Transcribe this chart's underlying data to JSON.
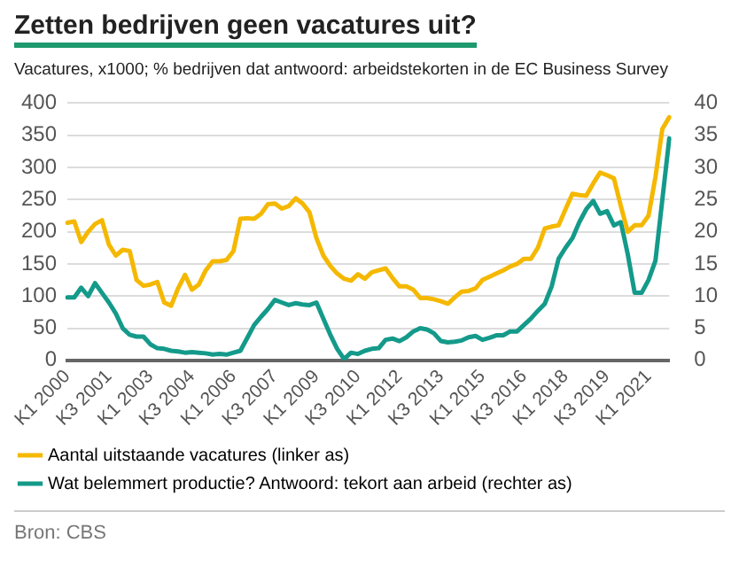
{
  "chart_data": {
    "type": "line",
    "title": "Zetten bedrijven geen vacatures uit?",
    "subtitle": "Vacatures, x1000; % bedrijven dat antwoord: arbeidstekorten in de EC Business Survey",
    "categories": [
      "K1 2000",
      null,
      null,
      null,
      null,
      null,
      "K3 2001",
      null,
      null,
      null,
      null,
      null,
      "K1 2003",
      null,
      null,
      null,
      null,
      null,
      "K3 2004",
      null,
      null,
      null,
      null,
      null,
      "K1 2006",
      null,
      null,
      null,
      null,
      null,
      "K3 2007",
      null,
      null,
      null,
      null,
      null,
      "K1 2009",
      null,
      null,
      null,
      null,
      null,
      "K3 2010",
      null,
      null,
      null,
      null,
      null,
      "K1 2012",
      null,
      null,
      null,
      null,
      null,
      "K3 2013",
      null,
      null,
      null,
      null,
      null,
      "K1 2015",
      null,
      null,
      null,
      null,
      null,
      "K3 2016",
      null,
      null,
      null,
      null,
      null,
      "K1 2018",
      null,
      null,
      null,
      null,
      null,
      "K3 2019",
      null,
      null,
      null,
      null,
      null,
      "K1 2021",
      null,
      null,
      null
    ],
    "series": [
      {
        "name": "Aantal uitstaande vacatures (linker as)",
        "color": "#f5b800",
        "axis": "y",
        "values": [
          214,
          216,
          184,
          200,
          212,
          218,
          180,
          163,
          172,
          170,
          125,
          116,
          118,
          122,
          90,
          85,
          112,
          133,
          110,
          118,
          140,
          154,
          154,
          156,
          170,
          220,
          221,
          220,
          228,
          243,
          244,
          236,
          240,
          252,
          244,
          230,
          190,
          163,
          147,
          135,
          127,
          124,
          134,
          127,
          137,
          140,
          143,
          128,
          115,
          115,
          110,
          97,
          97,
          95,
          92,
          88,
          98,
          107,
          108,
          112,
          125,
          130,
          135,
          140,
          146,
          150,
          158,
          158,
          175,
          205,
          208,
          210,
          235,
          259,
          257,
          256,
          275,
          292,
          288,
          283,
          240,
          200,
          210,
          210,
          225,
          285,
          360,
          378
        ]
      },
      {
        "name": "Wat belemmert productie? Antwoord: tekort aan arbeid (rechter as)",
        "color": "#149a8a",
        "axis": "y2",
        "values": [
          9.8,
          9.8,
          11.3,
          10,
          12,
          10.5,
          9,
          7.3,
          5,
          4,
          3.7,
          3.7,
          2.5,
          1.9,
          1.8,
          1.5,
          1.4,
          1.2,
          1.3,
          1.2,
          1.1,
          0.9,
          1,
          0.9,
          1.2,
          1.5,
          3.5,
          5.5,
          6.8,
          8,
          9.4,
          9,
          8.6,
          8.9,
          8.7,
          8.6,
          9,
          6.5,
          4,
          1.8,
          0.2,
          1.2,
          1,
          1.5,
          1.8,
          1.9,
          3.2,
          3.4,
          3,
          3.6,
          4.5,
          5,
          4.8,
          4.2,
          3,
          2.8,
          2.9,
          3.1,
          3.6,
          3.8,
          3.2,
          3.5,
          3.9,
          3.9,
          4.5,
          4.5,
          5.5,
          6.5,
          7.7,
          8.8,
          11.5,
          15.8,
          17.5,
          19,
          21.5,
          23.5,
          24.8,
          22.8,
          23.2,
          21,
          21.5,
          16.5,
          10.5,
          10.5,
          12.5,
          15.5,
          25,
          34.5
        ]
      }
    ],
    "ylim": [
      0,
      400
    ],
    "yticks": [
      0,
      50,
      100,
      150,
      200,
      250,
      300,
      350,
      400
    ],
    "y2lim": [
      0,
      40
    ],
    "y2ticks": [
      0,
      5,
      10,
      15,
      20,
      25,
      30,
      35,
      40
    ],
    "grid": "y",
    "legend": "bottom",
    "marker": "none",
    "line_style": "solid",
    "annotations": [
      "Bron: CBS"
    ]
  }
}
